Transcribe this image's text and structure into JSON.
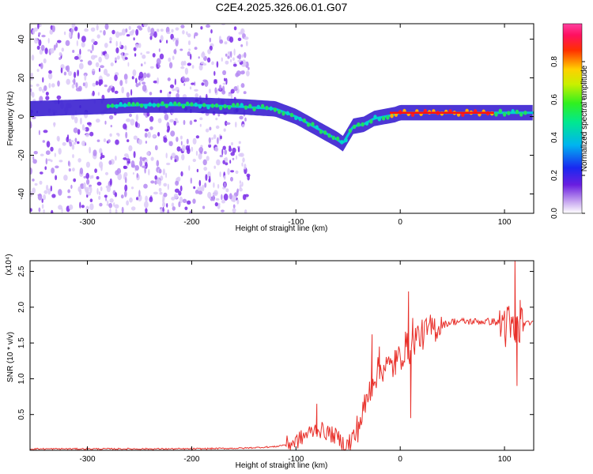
{
  "title": "C2E4.2025.326.06.01.G07",
  "colors": {
    "snr_line": "#e8302a",
    "ridge": "#4a1ec8",
    "scatter": "#9a55f0"
  },
  "chart_data": [
    {
      "type": "heatmap",
      "xlabel": "Height of straight line (km)",
      "ylabel": "Frequency (Hz)",
      "xlim": [
        -355,
        128
      ],
      "ylim": [
        -50,
        48
      ],
      "x_ticks": [
        -300,
        -200,
        -100,
        0,
        100
      ],
      "y_ticks": [
        -40,
        -20,
        0,
        20,
        40
      ],
      "grid": false,
      "colorbar": {
        "label": "Normalized spectral amplitude",
        "range": [
          0,
          1
        ],
        "ticks": [
          "0.0",
          "0.2",
          "0.4",
          "0.6",
          "0.8"
        ],
        "colormap": "rainbow (white-violet-blue-cyan-green-yellow-red-magenta)"
      },
      "noise_region_x": [
        -355,
        -145
      ],
      "ridge": {
        "x": [
          -355,
          -300,
          -250,
          -200,
          -150,
          -120,
          -100,
          -80,
          -70,
          -60,
          -55,
          -45,
          -35,
          -25,
          -15,
          -5,
          0,
          10,
          30,
          60,
          80,
          100,
          128
        ],
        "y": [
          4,
          5,
          6,
          6,
          5,
          4,
          0,
          -6,
          -9,
          -12,
          -14,
          -5,
          -4,
          -1,
          0,
          1,
          2,
          2,
          2,
          2,
          2,
          2,
          2
        ],
        "peak_amplitude_x": [
          -10,
          90
        ]
      }
    },
    {
      "type": "line",
      "xlabel": "Height of straight line (km)",
      "ylabel": "SNR (10 * v/v)",
      "y_multiplier": "(x10⁴)",
      "xlim": [
        -355,
        128
      ],
      "ylim": [
        0,
        2.65
      ],
      "x_ticks": [
        -300,
        -200,
        -100,
        0,
        100
      ],
      "y_ticks": [
        "0.5",
        "1.0",
        "1.5",
        "2.0",
        "2.5"
      ],
      "grid": false,
      "series": [
        {
          "x": [
            -355,
            -300,
            -250,
            -200,
            -150,
            -120,
            -110,
            -100,
            -90,
            -80,
            -70,
            -60,
            -55,
            -50,
            -45,
            -40,
            -35,
            -30,
            -25,
            -20,
            -15,
            -10,
            -5,
            0,
            5,
            10,
            15,
            20,
            30,
            40,
            50,
            60,
            70,
            80,
            90,
            100,
            105,
            110,
            115,
            120,
            128
          ],
          "y": [
            0.02,
            0.02,
            0.02,
            0.02,
            0.03,
            0.05,
            0.08,
            0.12,
            0.22,
            0.3,
            0.25,
            0.18,
            0.1,
            0.08,
            0.15,
            0.35,
            0.55,
            0.8,
            1.05,
            1.1,
            1.2,
            1.15,
            1.2,
            1.3,
            1.45,
            1.4,
            1.6,
            1.6,
            1.7,
            1.75,
            1.8,
            1.8,
            1.8,
            1.8,
            1.8,
            1.75,
            1.7,
            1.6,
            1.75,
            1.78,
            1.78
          ],
          "spikes": [
            [
              -80,
              0.65
            ],
            [
              -27,
              1.62
            ],
            [
              -20,
              1.45
            ],
            [
              -5,
              1.4
            ],
            [
              8,
              2.22
            ],
            [
              10,
              0.45
            ],
            [
              12,
              1.85
            ],
            [
              100,
              1.95
            ],
            [
              110,
              2.7
            ],
            [
              112,
              0.9
            ],
            [
              115,
              2.1
            ]
          ]
        }
      ]
    }
  ]
}
